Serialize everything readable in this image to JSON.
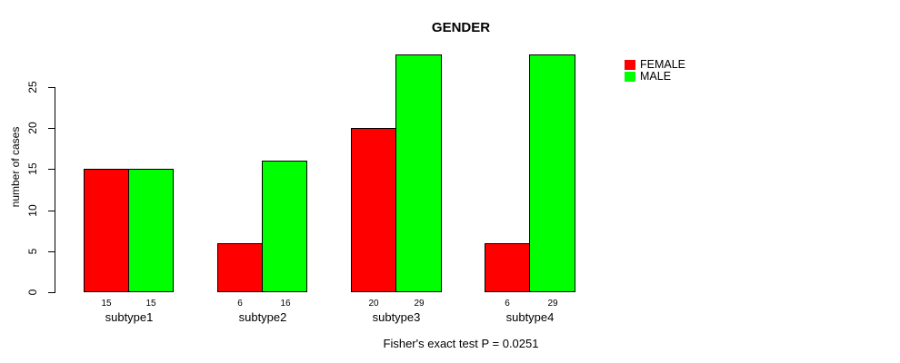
{
  "chart_data": {
    "type": "bar",
    "title": "GENDER",
    "categories": [
      "subtype1",
      "subtype2",
      "subtype3",
      "subtype4"
    ],
    "series": [
      {
        "name": "FEMALE",
        "color": "#ff0000",
        "values": [
          15,
          6,
          20,
          6
        ]
      },
      {
        "name": "MALE",
        "color": "#00ff00",
        "values": [
          15,
          16,
          29,
          29
        ]
      }
    ],
    "bar_value_labels": [
      [
        "15",
        "15"
      ],
      [
        "6",
        "16"
      ],
      [
        "20",
        "29"
      ],
      [
        "6",
        "29"
      ]
    ],
    "xlabel": "",
    "ylabel": "number of cases",
    "yticks": [
      0,
      5,
      10,
      15,
      20,
      25
    ],
    "ylim": [
      0,
      29
    ],
    "grid": false,
    "legend_position": "top-right",
    "annotation": "Fisher's exact test P = 0.0251"
  }
}
